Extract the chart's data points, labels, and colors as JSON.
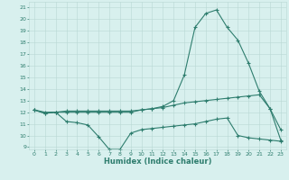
{
  "xlabel": "Humidex (Indice chaleur)",
  "x": [
    0,
    1,
    2,
    3,
    4,
    5,
    6,
    7,
    8,
    9,
    10,
    11,
    12,
    13,
    14,
    15,
    16,
    17,
    18,
    19,
    20,
    21,
    22,
    23
  ],
  "line_peak": [
    12.2,
    12.0,
    12.0,
    12.0,
    12.0,
    12.0,
    12.0,
    12.0,
    12.0,
    12.0,
    12.2,
    12.3,
    12.5,
    13.0,
    15.2,
    19.3,
    20.5,
    20.8,
    19.3,
    18.2,
    16.2,
    13.8,
    12.3,
    9.6
  ],
  "line_upper": [
    12.2,
    11.9,
    12.0,
    12.1,
    12.1,
    12.1,
    12.1,
    12.1,
    12.1,
    12.1,
    12.2,
    12.3,
    12.4,
    12.6,
    12.8,
    12.9,
    13.0,
    13.1,
    13.2,
    13.3,
    13.4,
    13.5,
    12.3,
    10.5
  ],
  "line_lower": [
    12.2,
    11.9,
    12.0,
    11.2,
    11.1,
    10.9,
    9.9,
    8.8,
    8.8,
    10.2,
    10.5,
    10.6,
    10.7,
    10.8,
    10.9,
    11.0,
    11.2,
    11.4,
    11.5,
    10.0,
    9.8,
    9.7,
    9.6,
    9.5
  ],
  "line_color": "#2e7d6e",
  "bg_color": "#d8f0ee",
  "grid_color": "#b8d8d4",
  "ylim": [
    8.8,
    21.5
  ],
  "yticks": [
    9,
    10,
    11,
    12,
    13,
    14,
    15,
    16,
    17,
    18,
    19,
    20,
    21
  ],
  "xlim": [
    -0.5,
    23.5
  ],
  "xticks": [
    0,
    1,
    2,
    3,
    4,
    5,
    6,
    7,
    8,
    9,
    10,
    11,
    12,
    13,
    14,
    15,
    16,
    17,
    18,
    19,
    20,
    21,
    22,
    23
  ]
}
